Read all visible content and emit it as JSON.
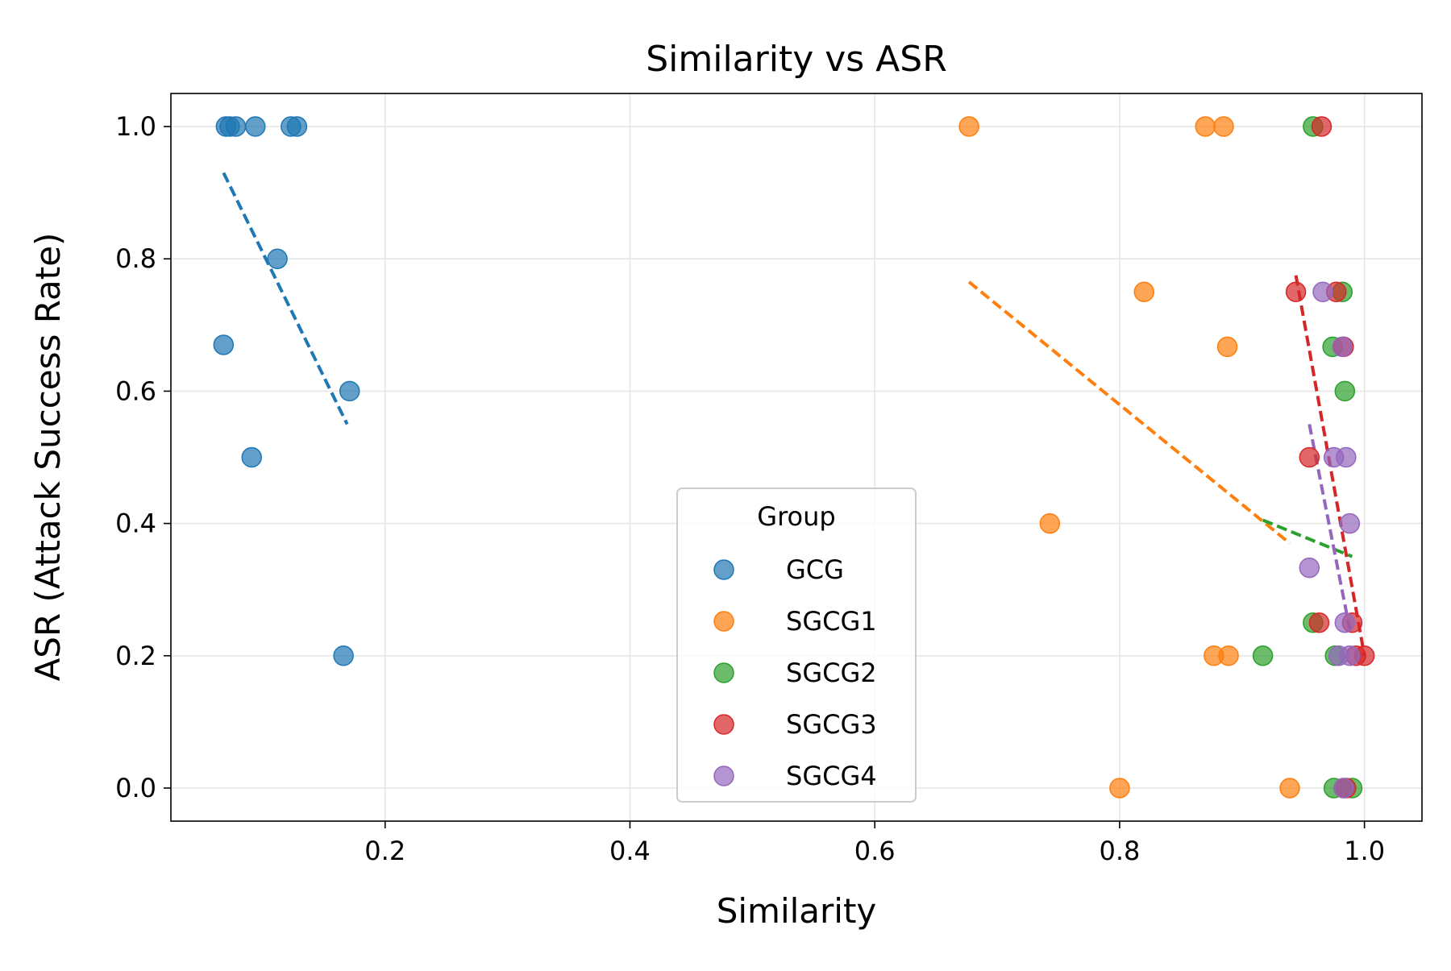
{
  "chart_data": {
    "type": "scatter",
    "title": "Similarity vs ASR",
    "xlabel": "Similarity",
    "ylabel": "ASR (Attack Success Rate)",
    "xlim": [
      0.025,
      1.047
    ],
    "ylim": [
      -0.05,
      1.05
    ],
    "xticks": [
      0.2,
      0.4,
      0.6,
      0.8,
      1.0
    ],
    "xtick_labels": [
      "0.2",
      "0.4",
      "0.6",
      "0.8",
      "1.0"
    ],
    "yticks": [
      0.0,
      0.2,
      0.4,
      0.6,
      0.8,
      1.0
    ],
    "ytick_labels": [
      "0.0",
      "0.2",
      "0.4",
      "0.6",
      "0.8",
      "1.0"
    ],
    "grid": true,
    "legend": {
      "title": "Group",
      "location": "lower-center"
    },
    "series": [
      {
        "name": "GCG",
        "color": "#1f77b4",
        "points": [
          [
            0.07,
            1.0
          ],
          [
            0.073,
            1.0
          ],
          [
            0.078,
            1.0
          ],
          [
            0.094,
            1.0
          ],
          [
            0.123,
            1.0
          ],
          [
            0.128,
            1.0
          ],
          [
            0.112,
            0.8
          ],
          [
            0.068,
            0.67
          ],
          [
            0.171,
            0.6
          ],
          [
            0.091,
            0.5
          ],
          [
            0.166,
            0.2
          ]
        ],
        "trend": [
          [
            0.068,
            0.93
          ],
          [
            0.169,
            0.55
          ]
        ]
      },
      {
        "name": "SGCG1",
        "color": "#ff7f0e",
        "points": [
          [
            0.677,
            1.0
          ],
          [
            0.87,
            1.0
          ],
          [
            0.885,
            1.0
          ],
          [
            0.82,
            0.75
          ],
          [
            0.888,
            0.667
          ],
          [
            0.743,
            0.4
          ],
          [
            0.877,
            0.2
          ],
          [
            0.889,
            0.2
          ],
          [
            0.8,
            0.0
          ],
          [
            0.939,
            0.0
          ]
        ],
        "trend": [
          [
            0.677,
            0.765
          ],
          [
            0.939,
            0.37
          ]
        ]
      },
      {
        "name": "SGCG2",
        "color": "#2ca02c",
        "points": [
          [
            0.958,
            1.0
          ],
          [
            0.982,
            0.75
          ],
          [
            0.974,
            0.667
          ],
          [
            0.984,
            0.6
          ],
          [
            0.958,
            0.25
          ],
          [
            0.917,
            0.2
          ],
          [
            0.976,
            0.2
          ],
          [
            0.975,
            0.0
          ],
          [
            0.983,
            0.0
          ],
          [
            0.99,
            0.0
          ]
        ],
        "trend": [
          [
            0.917,
            0.405
          ],
          [
            0.99,
            0.35
          ]
        ]
      },
      {
        "name": "SGCG3",
        "color": "#d62728",
        "points": [
          [
            0.965,
            1.0
          ],
          [
            0.944,
            0.75
          ],
          [
            0.977,
            0.75
          ],
          [
            0.983,
            0.667
          ],
          [
            0.955,
            0.5
          ],
          [
            0.963,
            0.25
          ],
          [
            0.99,
            0.25
          ],
          [
            0.993,
            0.2
          ],
          [
            1.0,
            0.2
          ],
          [
            0.985,
            0.0
          ]
        ],
        "trend": [
          [
            0.944,
            0.775
          ],
          [
            1.0,
            0.2
          ]
        ]
      },
      {
        "name": "SGCG4",
        "color": "#9467bd",
        "points": [
          [
            0.966,
            0.75
          ],
          [
            0.982,
            0.667
          ],
          [
            0.975,
            0.5
          ],
          [
            0.985,
            0.5
          ],
          [
            0.988,
            0.4
          ],
          [
            0.955,
            0.333
          ],
          [
            0.984,
            0.25
          ],
          [
            0.979,
            0.2
          ],
          [
            0.988,
            0.2
          ],
          [
            0.983,
            0.0
          ]
        ],
        "trend": [
          [
            0.955,
            0.55
          ],
          [
            0.988,
            0.24
          ]
        ]
      }
    ]
  }
}
